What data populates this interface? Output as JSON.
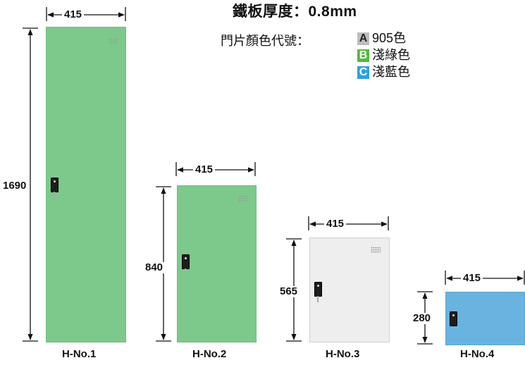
{
  "spec": {
    "thickness_label": "鐵板厚度：0.8mm",
    "color_code_label": "門片顏色代號：",
    "colors": [
      {
        "code": "A",
        "name": "905色",
        "swatch": "#bdbdbd"
      },
      {
        "code": "B",
        "name": "淺綠色",
        "swatch": "#56b93c"
      },
      {
        "code": "C",
        "name": "淺藍色",
        "swatch": "#2aa2dc"
      }
    ]
  },
  "door_colors": {
    "green": "#7dc98b",
    "white": "#eeeeee",
    "blue": "#69b3e0"
  },
  "lockers": [
    {
      "model": "H-No.1",
      "width": "415",
      "height": "1690"
    },
    {
      "model": "H-No.2",
      "width": "415",
      "height": "840"
    },
    {
      "model": "H-No.3",
      "width": "415",
      "height": "565"
    },
    {
      "model": "H-No.4",
      "width": "415",
      "height": "280"
    }
  ]
}
